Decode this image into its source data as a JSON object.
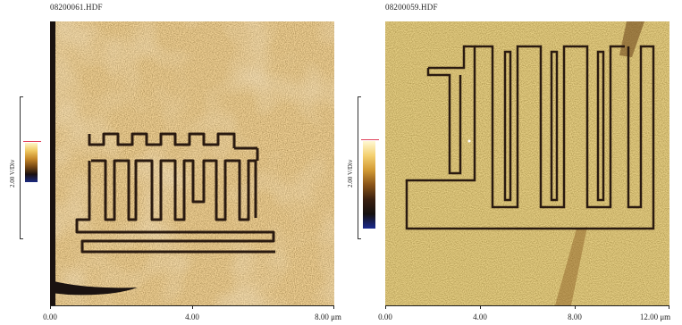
{
  "left": {
    "filename": "08200061.HDF",
    "scale_label": "2.00 V/Div",
    "x_ticks": [
      "0.00",
      "4.00",
      "8.00 μm"
    ]
  },
  "right": {
    "filename": "08200059.HDF",
    "scale_label": "2.00 V/Div",
    "x_ticks": [
      "0.00",
      "4.00",
      "8.00",
      "12.00 μm"
    ]
  }
}
